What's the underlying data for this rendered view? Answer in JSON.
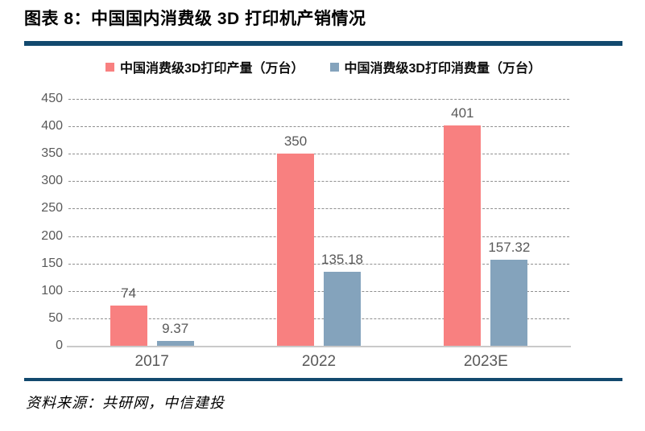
{
  "header": {
    "title": "图表 8：中国国内消费级 3D 打印机产销情况"
  },
  "footer": {
    "source": "资料来源：共研网，中信建投"
  },
  "colors": {
    "accent_rule": "#12496E",
    "production_bar": "#F88080",
    "consumption_bar": "#84A3BC",
    "axis_text": "#595959",
    "gridline": "#8F8F8F",
    "baseline": "#C9C9C9"
  },
  "chart_data": {
    "type": "bar",
    "title": "中国国内消费级 3D 打印机产销情况",
    "categories": [
      "2017",
      "2022",
      "2023E"
    ],
    "series": [
      {
        "name": "中国消费级3D打印产量（万台）",
        "color": "#F88080",
        "values": [
          74,
          350,
          401
        ],
        "labels": [
          "74",
          "350",
          "401"
        ]
      },
      {
        "name": "中国消费级3D打印消费量（万台）",
        "color": "#84A3BC",
        "values": [
          9.37,
          135.18,
          157.32
        ],
        "labels": [
          "9.37",
          "135.18",
          "157.32"
        ]
      }
    ],
    "xlabel": "",
    "ylabel": "",
    "ylim": [
      0,
      450
    ],
    "ytick_step": 50,
    "yticks": [
      0,
      50,
      100,
      150,
      200,
      250,
      300,
      350,
      400,
      450
    ],
    "grid": "horizontal-dashed",
    "legend_position": "top-center",
    "bar_value_labels": true
  }
}
